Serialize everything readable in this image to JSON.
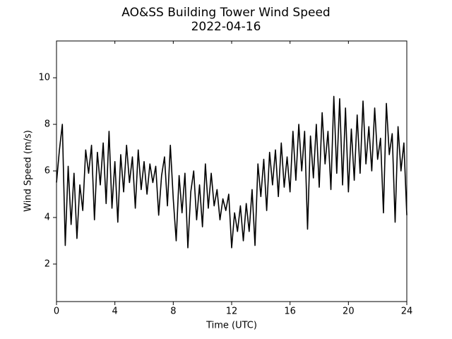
{
  "chart_data": {
    "type": "line",
    "title": "AO&SS Building Tower Wind Speed",
    "subtitle": "2022-04-16",
    "x_label": "Time (UTC)",
    "y_label": "Wind Speed (m/s)",
    "color": "#000000",
    "xlim": [
      0,
      24
    ],
    "xticks": [
      0,
      4,
      8,
      12,
      16,
      20,
      24
    ],
    "ylim": [
      0.39,
      11.58
    ],
    "yticks": [
      2,
      4,
      6,
      8,
      10
    ],
    "grid": false,
    "x": [
      0.0,
      0.2,
      0.4,
      0.6,
      0.8,
      1.0,
      1.2,
      1.4,
      1.6,
      1.8,
      2.0,
      2.2,
      2.4,
      2.6,
      2.8,
      3.0,
      3.2,
      3.4,
      3.6,
      3.8,
      4.0,
      4.2,
      4.4,
      4.6,
      4.8,
      5.0,
      5.2,
      5.4,
      5.6,
      5.8,
      6.0,
      6.2,
      6.4,
      6.6,
      6.8,
      7.0,
      7.2,
      7.4,
      7.6,
      7.8,
      8.0,
      8.2,
      8.4,
      8.6,
      8.8,
      9.0,
      9.2,
      9.4,
      9.6,
      9.8,
      10.0,
      10.2,
      10.4,
      10.6,
      10.8,
      11.0,
      11.2,
      11.4,
      11.6,
      11.8,
      12.0,
      12.2,
      12.4,
      12.6,
      12.8,
      13.0,
      13.2,
      13.4,
      13.6,
      13.8,
      14.0,
      14.2,
      14.4,
      14.6,
      14.8,
      15.0,
      15.2,
      15.4,
      15.6,
      15.8,
      16.0,
      16.2,
      16.4,
      16.6,
      16.8,
      17.0,
      17.2,
      17.4,
      17.6,
      17.8,
      18.0,
      18.2,
      18.4,
      18.6,
      18.8,
      19.0,
      19.2,
      19.4,
      19.6,
      19.8,
      20.0,
      20.2,
      20.4,
      20.6,
      20.8,
      21.0,
      21.2,
      21.4,
      21.6,
      21.8,
      22.0,
      22.2,
      22.4,
      22.6,
      22.8,
      23.0,
      23.2,
      23.4,
      23.6,
      23.8,
      24.0
    ],
    "values": [
      5.5,
      6.9,
      8.0,
      2.8,
      6.2,
      3.7,
      5.9,
      3.1,
      5.4,
      4.3,
      6.9,
      5.9,
      7.1,
      3.9,
      6.8,
      5.4,
      7.2,
      4.6,
      7.7,
      4.4,
      6.4,
      3.8,
      6.7,
      5.1,
      7.1,
      5.5,
      6.6,
      4.4,
      6.9,
      5.2,
      6.4,
      5.0,
      6.3,
      5.5,
      6.2,
      4.1,
      5.8,
      6.6,
      4.5,
      7.1,
      4.8,
      3.0,
      5.8,
      4.2,
      5.9,
      2.7,
      5.1,
      6.0,
      3.9,
      5.4,
      3.6,
      6.3,
      4.4,
      5.9,
      4.5,
      5.2,
      3.9,
      4.8,
      4.3,
      5.0,
      2.7,
      4.2,
      3.4,
      4.5,
      3.0,
      4.6,
      3.4,
      5.2,
      2.8,
      6.3,
      4.9,
      6.5,
      4.3,
      6.8,
      5.4,
      6.9,
      4.9,
      7.2,
      5.3,
      6.6,
      5.1,
      7.7,
      5.6,
      8.0,
      6.0,
      7.7,
      3.5,
      7.5,
      5.7,
      8.0,
      5.3,
      8.5,
      6.3,
      7.7,
      5.2,
      9.2,
      5.9,
      9.1,
      5.4,
      8.7,
      5.1,
      7.8,
      5.6,
      8.4,
      5.9,
      9.0,
      6.3,
      7.9,
      6.0,
      8.7,
      6.5,
      7.4,
      4.2,
      8.9,
      6.7,
      7.6,
      3.8,
      7.9,
      6.0,
      7.2,
      4.1
    ]
  }
}
